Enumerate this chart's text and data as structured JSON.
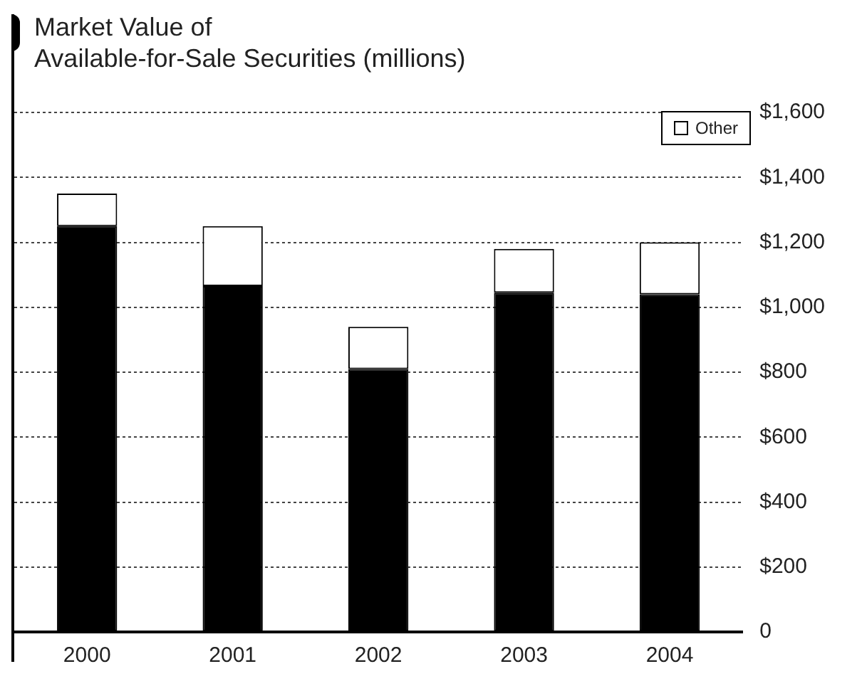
{
  "chart_data": {
    "type": "bar",
    "title": "Market Value of",
    "subtitle": "Available-for-Sale Securities (millions)",
    "categories": [
      "2000",
      "2001",
      "2002",
      "2003",
      "2004"
    ],
    "stacked": true,
    "series": [
      {
        "color": "#000000",
        "values": [
          1250,
          1065,
          810,
          1045,
          1040
        ]
      },
      {
        "name": "Other",
        "color": "#ffffff",
        "values": [
          100,
          185,
          130,
          135,
          160
        ]
      }
    ],
    "ylim": [
      0,
      1600
    ],
    "yticks": [
      0,
      {
        "value": 200,
        "label": "$200"
      },
      {
        "value": 400,
        "label": "$400"
      },
      {
        "value": 600,
        "label": "$600"
      },
      {
        "value": 800,
        "label": "$800"
      },
      {
        "value": 1000,
        "label": "$1,000"
      },
      {
        "value": 1200,
        "label": "$1,200"
      },
      {
        "value": 1400,
        "label": "$1,400"
      },
      {
        "value": 1600,
        "label": "$1,600"
      }
    ],
    "grid": "y",
    "legend": "top right"
  }
}
